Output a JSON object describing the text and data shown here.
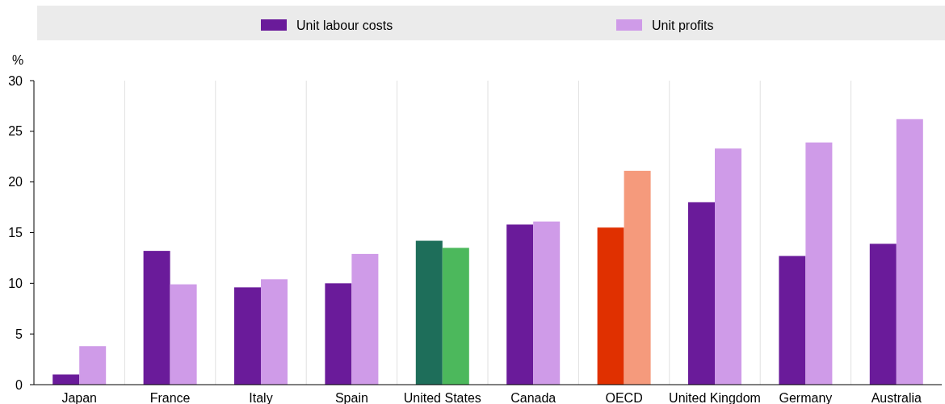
{
  "chart_data": {
    "type": "bar",
    "ylabel": "%",
    "categories": [
      "Japan",
      "France",
      "Italy",
      "Spain",
      "United States",
      "Canada",
      "OECD",
      "United Kingdom",
      "Germany",
      "Australia"
    ],
    "series": [
      {
        "name": "Unit labour costs",
        "color": "#6a1b9a",
        "colors": [
          "#6a1b9a",
          "#6a1b9a",
          "#6a1b9a",
          "#6a1b9a",
          "#1e6e5a",
          "#6a1b9a",
          "#e03000",
          "#6a1b9a",
          "#6a1b9a",
          "#6a1b9a"
        ],
        "values": [
          1.0,
          13.2,
          9.6,
          10.0,
          14.2,
          15.8,
          15.5,
          18.0,
          12.7,
          13.9
        ]
      },
      {
        "name": "Unit profits",
        "color": "#cf9be8",
        "colors": [
          "#cf9be8",
          "#cf9be8",
          "#cf9be8",
          "#cf9be8",
          "#4cb85c",
          "#cf9be8",
          "#f59a7c",
          "#cf9be8",
          "#cf9be8",
          "#cf9be8"
        ],
        "values": [
          3.8,
          9.9,
          10.4,
          12.9,
          13.5,
          16.1,
          21.1,
          23.3,
          23.9,
          26.2
        ]
      }
    ],
    "ylim": [
      0,
      30
    ],
    "yticks": [
      0,
      5,
      10,
      15,
      20,
      25,
      30
    ],
    "grid": "x",
    "legend": "top"
  }
}
